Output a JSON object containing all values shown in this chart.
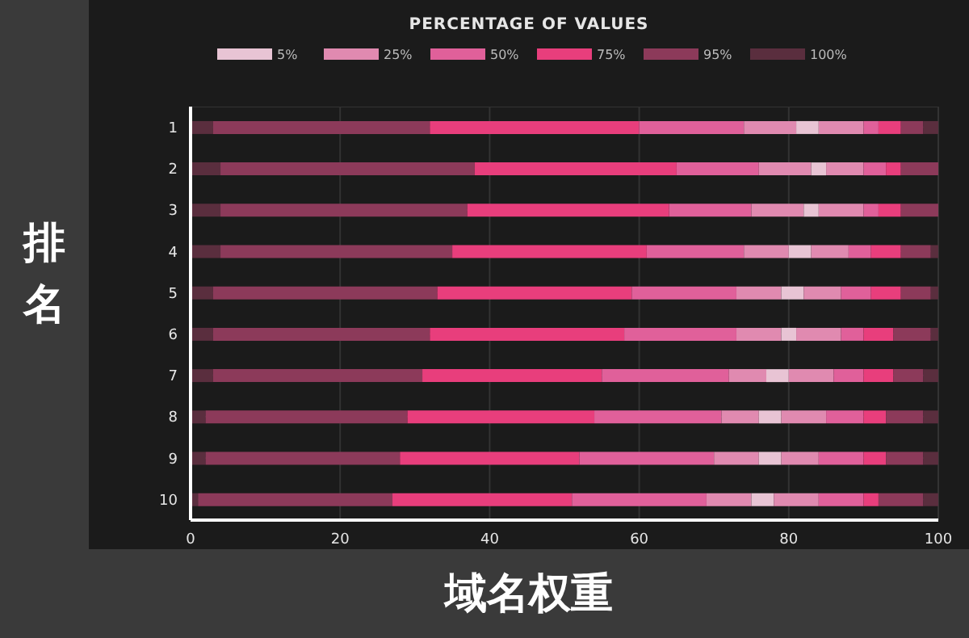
{
  "chart_data": {
    "type": "bar",
    "orientation": "horizontal",
    "stacked": true,
    "legend_title": "PERCENTAGE OF VALUES",
    "xlabel": "域名权重",
    "ylabel": "排名",
    "legend": "top",
    "grid": true,
    "categories": [
      "1",
      "2",
      "3",
      "4",
      "5",
      "6",
      "7",
      "8",
      "9",
      "10"
    ],
    "xlim": [
      0,
      100
    ],
    "xticks": [
      0,
      20,
      40,
      60,
      80,
      100
    ],
    "series": [
      {
        "name": "100%",
        "color": "#5a2e3e",
        "values": [
          3,
          4,
          4,
          4,
          3,
          3,
          3,
          2,
          2,
          1
        ]
      },
      {
        "name": "95%",
        "color": "#8c3a5a",
        "values": [
          29,
          34,
          33,
          31,
          30,
          29,
          28,
          27,
          26,
          26
        ]
      },
      {
        "name": "75%",
        "color": "#e83e7c",
        "values": [
          28,
          27,
          27,
          26,
          26,
          26,
          24,
          25,
          24,
          24
        ]
      },
      {
        "name": "50%",
        "color": "#e0609a",
        "values": [
          14,
          11,
          11,
          13,
          14,
          15,
          17,
          17,
          18,
          18
        ]
      },
      {
        "name": "25%",
        "color": "#e08ab0",
        "values": [
          7,
          7,
          7,
          6,
          6,
          6,
          5,
          5,
          6,
          6
        ]
      },
      {
        "name": "5%",
        "color": "#e8c4d4",
        "values": [
          3,
          2,
          2,
          3,
          3,
          2,
          3,
          3,
          3,
          3
        ]
      },
      {
        "color": "#e08ab0",
        "values": [
          6,
          5,
          6,
          5,
          5,
          6,
          6,
          6,
          5,
          6
        ]
      },
      {
        "color": "#e0609a",
        "values": [
          2,
          3,
          2,
          3,
          4,
          3,
          4,
          5,
          6,
          6
        ]
      },
      {
        "color": "#e83e7c",
        "values": [
          3,
          2,
          3,
          4,
          4,
          4,
          4,
          3,
          3,
          2
        ]
      },
      {
        "color": "#8c3a5a",
        "values": [
          3,
          5,
          5,
          4,
          4,
          5,
          4,
          5,
          5,
          6
        ]
      },
      {
        "color": "#5a2e3e",
        "values": [
          2,
          0,
          0,
          1,
          1,
          1,
          2,
          2,
          2,
          2
        ]
      }
    ]
  }
}
